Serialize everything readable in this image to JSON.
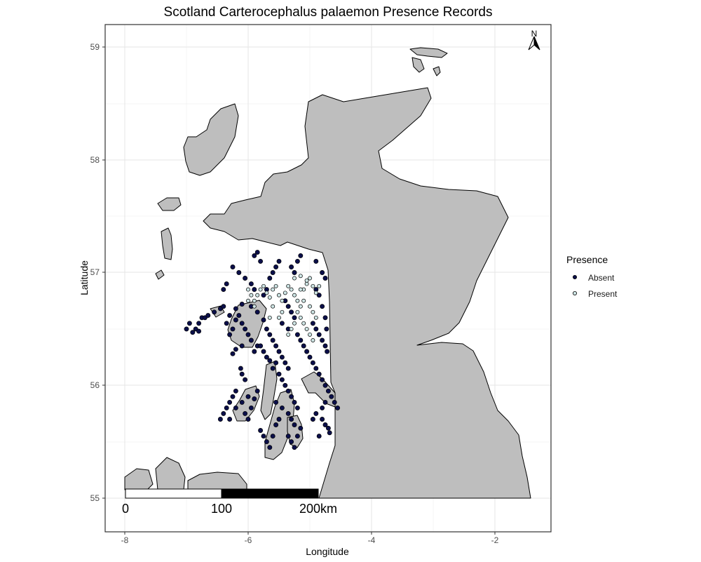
{
  "title": "Scotland Carterocephalus palaemon Presence Records",
  "x_axis_title": "Longitude",
  "y_axis_title": "Latitude",
  "x_ticks": [
    "-8",
    "-6",
    "-4",
    "-2"
  ],
  "y_ticks": [
    "55",
    "56",
    "57",
    "58",
    "59"
  ],
  "legend": {
    "title": "Presence",
    "entries": [
      {
        "label": "Absent",
        "fill": "#0b0f4a"
      },
      {
        "label": "Present",
        "fill": "#cfe6e6"
      }
    ]
  },
  "scale_bar": {
    "labels": [
      "0",
      "100",
      "200km"
    ]
  },
  "north_arrow": {
    "label": "N"
  },
  "colors": {
    "land": "#bebebe",
    "absent": "#0b0f4a",
    "present": "#cfe6e6",
    "panel_border": "#333333"
  },
  "chart_data": {
    "type": "scatter",
    "xlabel": "Longitude",
    "ylabel": "Latitude",
    "xlim": [
      -8.2,
      -1.0
    ],
    "ylim": [
      54.7,
      59.2
    ],
    "grid": true,
    "legend_position": "right",
    "series": [
      {
        "name": "Absent",
        "points": [
          [
            -7.0,
            56.5
          ],
          [
            -6.95,
            56.55
          ],
          [
            -6.85,
            56.5
          ],
          [
            -6.8,
            56.55
          ],
          [
            -6.75,
            56.6
          ],
          [
            -6.7,
            56.6
          ],
          [
            -6.65,
            56.62
          ],
          [
            -6.9,
            56.47
          ],
          [
            -6.8,
            56.48
          ],
          [
            -6.55,
            56.65
          ],
          [
            -6.45,
            56.68
          ],
          [
            -6.4,
            56.7
          ],
          [
            -6.35,
            56.55
          ],
          [
            -6.3,
            56.45
          ],
          [
            -6.25,
            56.5
          ],
          [
            -6.2,
            56.58
          ],
          [
            -6.15,
            56.62
          ],
          [
            -6.1,
            56.55
          ],
          [
            -6.05,
            56.5
          ],
          [
            -6.0,
            56.45
          ],
          [
            -5.95,
            56.4
          ],
          [
            -6.1,
            56.35
          ],
          [
            -6.2,
            56.32
          ],
          [
            -6.25,
            56.28
          ],
          [
            -5.9,
            56.3
          ],
          [
            -5.85,
            56.35
          ],
          [
            -6.3,
            56.62
          ],
          [
            -6.2,
            56.68
          ],
          [
            -6.1,
            56.72
          ],
          [
            -5.95,
            56.7
          ],
          [
            -5.85,
            56.65
          ],
          [
            -5.75,
            56.58
          ],
          [
            -5.7,
            56.5
          ],
          [
            -5.65,
            56.45
          ],
          [
            -5.6,
            56.4
          ],
          [
            -5.55,
            56.35
          ],
          [
            -5.5,
            56.3
          ],
          [
            -5.45,
            56.25
          ],
          [
            -5.4,
            56.2
          ],
          [
            -5.35,
            56.15
          ],
          [
            -5.5,
            56.1
          ],
          [
            -5.45,
            56.05
          ],
          [
            -5.4,
            56.0
          ],
          [
            -5.35,
            55.95
          ],
          [
            -5.3,
            55.9
          ],
          [
            -5.25,
            55.85
          ],
          [
            -5.2,
            55.8
          ],
          [
            -5.2,
            56.45
          ],
          [
            -5.15,
            56.4
          ],
          [
            -5.1,
            56.35
          ],
          [
            -5.05,
            56.3
          ],
          [
            -5.0,
            56.25
          ],
          [
            -4.95,
            56.2
          ],
          [
            -4.9,
            56.15
          ],
          [
            -4.85,
            56.1
          ],
          [
            -4.8,
            56.05
          ],
          [
            -4.75,
            56.0
          ],
          [
            -4.7,
            55.95
          ],
          [
            -4.65,
            55.9
          ],
          [
            -4.6,
            55.85
          ],
          [
            -4.55,
            55.8
          ],
          [
            -4.8,
            55.7
          ],
          [
            -4.75,
            55.65
          ],
          [
            -4.7,
            55.62
          ],
          [
            -4.68,
            55.58
          ],
          [
            -4.9,
            55.75
          ],
          [
            -4.95,
            55.7
          ],
          [
            -6.1,
            56.1
          ],
          [
            -6.05,
            56.05
          ],
          [
            -6.12,
            56.15
          ],
          [
            -6.2,
            55.95
          ],
          [
            -6.25,
            55.9
          ],
          [
            -6.3,
            55.85
          ],
          [
            -6.35,
            55.8
          ],
          [
            -6.4,
            55.75
          ],
          [
            -6.45,
            55.7
          ],
          [
            -6.3,
            55.7
          ],
          [
            -6.2,
            55.8
          ],
          [
            -6.1,
            55.85
          ],
          [
            -6.0,
            55.9
          ],
          [
            -6.0,
            55.7
          ],
          [
            -5.8,
            55.6
          ],
          [
            -5.75,
            55.55
          ],
          [
            -5.7,
            55.5
          ],
          [
            -5.65,
            55.45
          ],
          [
            -5.6,
            55.55
          ],
          [
            -5.55,
            55.65
          ],
          [
            -5.5,
            55.7
          ],
          [
            -5.35,
            55.55
          ],
          [
            -5.3,
            55.5
          ],
          [
            -5.25,
            55.45
          ],
          [
            -5.2,
            55.55
          ],
          [
            -5.15,
            55.62
          ],
          [
            -5.3,
            57.05
          ],
          [
            -5.25,
            57.0
          ],
          [
            -5.2,
            57.1
          ],
          [
            -5.15,
            57.15
          ],
          [
            -4.9,
            57.1
          ],
          [
            -4.8,
            57.0
          ],
          [
            -4.75,
            56.95
          ],
          [
            -5.5,
            57.1
          ],
          [
            -5.55,
            57.05
          ],
          [
            -5.6,
            57.0
          ],
          [
            -5.65,
            56.95
          ],
          [
            -5.7,
            56.85
          ],
          [
            -5.75,
            56.8
          ],
          [
            -6.25,
            57.05
          ],
          [
            -6.15,
            57.0
          ],
          [
            -6.05,
            56.95
          ],
          [
            -5.95,
            56.9
          ],
          [
            -5.9,
            56.85
          ],
          [
            -6.35,
            56.9
          ],
          [
            -6.4,
            56.85
          ],
          [
            -5.9,
            57.15
          ],
          [
            -5.8,
            57.1
          ],
          [
            -5.85,
            57.18
          ],
          [
            -5.4,
            56.75
          ],
          [
            -5.35,
            56.7
          ],
          [
            -5.3,
            56.65
          ],
          [
            -5.25,
            56.6
          ],
          [
            -5.45,
            56.55
          ],
          [
            -5.35,
            56.5
          ],
          [
            -4.95,
            56.55
          ],
          [
            -4.9,
            56.5
          ],
          [
            -4.85,
            56.45
          ],
          [
            -4.8,
            56.4
          ],
          [
            -4.75,
            56.35
          ],
          [
            -4.72,
            56.3
          ],
          [
            -4.9,
            56.85
          ],
          [
            -4.85,
            56.8
          ],
          [
            -4.8,
            56.7
          ],
          [
            -4.75,
            56.6
          ],
          [
            -4.73,
            56.5
          ],
          [
            -6.05,
            55.75
          ],
          [
            -5.95,
            55.8
          ],
          [
            -5.9,
            55.88
          ],
          [
            -5.85,
            55.95
          ],
          [
            -5.55,
            55.85
          ],
          [
            -5.45,
            55.8
          ],
          [
            -5.35,
            55.75
          ],
          [
            -5.3,
            55.7
          ],
          [
            -5.25,
            55.65
          ],
          [
            -4.85,
            55.55
          ],
          [
            -4.8,
            55.8
          ],
          [
            -4.75,
            55.85
          ],
          [
            -5.6,
            56.15
          ],
          [
            -5.55,
            56.2
          ],
          [
            -5.65,
            56.22
          ],
          [
            -5.7,
            56.25
          ],
          [
            -5.75,
            56.3
          ],
          [
            -5.8,
            56.35
          ]
        ]
      },
      {
        "name": "Present",
        "points": [
          [
            -6.0,
            56.85
          ],
          [
            -5.95,
            56.8
          ],
          [
            -5.9,
            56.75
          ],
          [
            -5.85,
            56.8
          ],
          [
            -5.8,
            56.85
          ],
          [
            -5.75,
            56.88
          ],
          [
            -5.7,
            56.82
          ],
          [
            -5.65,
            56.78
          ],
          [
            -5.6,
            56.85
          ],
          [
            -5.55,
            56.88
          ],
          [
            -5.5,
            56.8
          ],
          [
            -5.45,
            56.75
          ],
          [
            -5.4,
            56.82
          ],
          [
            -5.35,
            56.88
          ],
          [
            -5.3,
            56.85
          ],
          [
            -5.25,
            56.8
          ],
          [
            -5.2,
            56.75
          ],
          [
            -5.15,
            56.7
          ],
          [
            -5.1,
            56.85
          ],
          [
            -5.05,
            56.9
          ],
          [
            -5.0,
            56.95
          ],
          [
            -4.95,
            56.88
          ],
          [
            -4.9,
            56.82
          ],
          [
            -4.85,
            56.88
          ],
          [
            -5.25,
            56.95
          ],
          [
            -5.15,
            56.97
          ],
          [
            -5.05,
            56.93
          ],
          [
            -5.2,
            56.65
          ],
          [
            -5.15,
            56.6
          ],
          [
            -5.1,
            56.55
          ],
          [
            -5.05,
            56.5
          ],
          [
            -5.0,
            56.45
          ],
          [
            -4.95,
            56.4
          ],
          [
            -5.25,
            56.55
          ],
          [
            -5.3,
            56.5
          ],
          [
            -5.35,
            56.45
          ],
          [
            -5.5,
            56.6
          ],
          [
            -5.45,
            56.65
          ],
          [
            -5.6,
            56.7
          ],
          [
            -5.65,
            56.6
          ],
          [
            -5.9,
            56.7
          ],
          [
            -6.0,
            56.75
          ],
          [
            -5.0,
            56.7
          ],
          [
            -4.95,
            56.65
          ],
          [
            -4.9,
            56.6
          ],
          [
            -5.1,
            56.75
          ],
          [
            -5.15,
            56.85
          ]
        ]
      }
    ]
  }
}
